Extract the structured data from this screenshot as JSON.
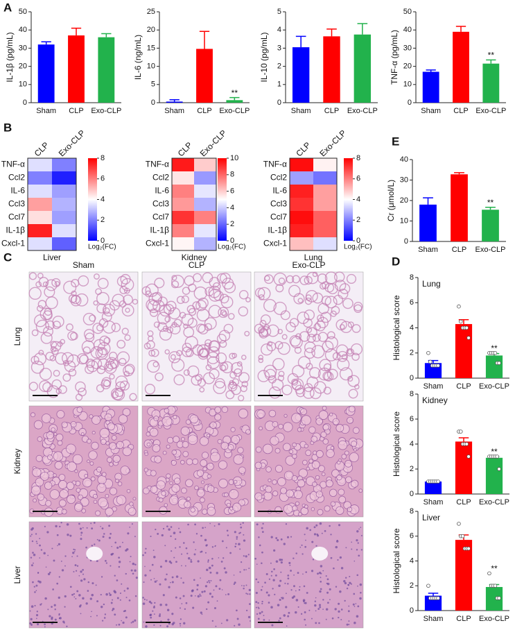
{
  "chart_data": [
    {
      "type": "bar",
      "panel": "A",
      "ylabel": "IL-1β (pg/mL)",
      "categories": [
        "Sham",
        "CLP",
        "Exo-CLP"
      ],
      "values": [
        32,
        37,
        36
      ],
      "errors": [
        1.5,
        4,
        2
      ],
      "colors": [
        "#0000ff",
        "#ff0000",
        "#22b24c"
      ],
      "ylim": [
        0,
        50
      ],
      "yticks": [
        0,
        10,
        20,
        30,
        40,
        50
      ]
    },
    {
      "type": "bar",
      "ylabel": "IL-6 (ng/mL)",
      "categories": [
        "Sham",
        "CLP",
        "Exo-CLP"
      ],
      "values": [
        0.3,
        14.8,
        0.7
      ],
      "errors": [
        0.5,
        4.8,
        0.7
      ],
      "colors": [
        "#0000ff",
        "#ff0000",
        "#22b24c"
      ],
      "ylim": [
        0,
        25
      ],
      "yticks": [
        0,
        5,
        10,
        15,
        20,
        25
      ],
      "annotations": [
        {
          "text": "**",
          "category": "Exo-CLP"
        }
      ]
    },
    {
      "type": "bar",
      "ylabel": "IL-10 (pg/mL)",
      "categories": [
        "Sham",
        "CLP",
        "Exo-CLP"
      ],
      "values": [
        3.05,
        3.65,
        3.75
      ],
      "errors": [
        0.6,
        0.4,
        0.6
      ],
      "colors": [
        "#0000ff",
        "#ff0000",
        "#22b24c"
      ],
      "ylim": [
        0,
        5
      ],
      "yticks": [
        0,
        1,
        2,
        3,
        4,
        5
      ]
    },
    {
      "type": "bar",
      "ylabel": "TNF-α (pg/mL)",
      "categories": [
        "Sham",
        "CLP",
        "Exo-CLP"
      ],
      "values": [
        17,
        39,
        21.5
      ],
      "errors": [
        1,
        3,
        2
      ],
      "colors": [
        "#0000ff",
        "#ff0000",
        "#22b24c"
      ],
      "ylim": [
        0,
        50
      ],
      "yticks": [
        0,
        10,
        20,
        30,
        40,
        50
      ],
      "annotations": [
        {
          "text": "**",
          "category": "Exo-CLP"
        }
      ]
    },
    {
      "type": "heatmap",
      "panel": "B",
      "title": "Liver",
      "columns": [
        "CLP",
        "Exo-CLP"
      ],
      "rows": [
        "TNF-α",
        "Ccl2",
        "IL-6",
        "Ccl3",
        "Ccl7",
        "IL-1β",
        "Cxcl-1"
      ],
      "values": [
        [
          3.5,
          2
        ],
        [
          2,
          0.5
        ],
        [
          3.5,
          2.5
        ],
        [
          5.5,
          2.8
        ],
        [
          4.5,
          2.5
        ],
        [
          7.5,
          3.5
        ],
        [
          3.5,
          1.5
        ]
      ],
      "zlim": [
        0,
        8
      ],
      "zticks": [
        0,
        2,
        4,
        6,
        8
      ],
      "colorbar_label": "Log₂(FC)",
      "colormap": [
        "#0000ff",
        "#ffffff",
        "#ff0000"
      ]
    },
    {
      "type": "heatmap",
      "title": "Kidney",
      "columns": [
        "CLP",
        "Exo-CLP"
      ],
      "rows": [
        "TNF-α",
        "Ccl2",
        "IL-6",
        "Ccl3",
        "Ccl7",
        "IL-1β",
        "Cxcl-1"
      ],
      "values": [
        [
          9.5,
          6
        ],
        [
          5.5,
          3
        ],
        [
          7.5,
          4.5
        ],
        [
          7,
          3.5
        ],
        [
          9,
          7.5
        ],
        [
          7.5,
          4.5
        ],
        [
          5.2,
          3.5
        ]
      ],
      "zlim": [
        0,
        10
      ],
      "zticks": [
        0,
        2,
        4,
        6,
        8,
        10
      ],
      "colorbar_label": "Log₂(FC)",
      "colormap": [
        "#0000ff",
        "#ffffff",
        "#ff0000"
      ]
    },
    {
      "type": "heatmap",
      "title": "Lung",
      "columns": [
        "CLP",
        "Exo-CLP"
      ],
      "rows": [
        "TNF-α",
        "Ccl2",
        "IL-6",
        "Ccl3",
        "Ccl7",
        "IL-1β",
        "Cxcl-1"
      ],
      "values": [
        [
          7.8,
          4.2
        ],
        [
          2.5,
          1.8
        ],
        [
          7.5,
          5.5
        ],
        [
          7.2,
          5.5
        ],
        [
          7.8,
          6.5
        ],
        [
          7.5,
          6.5
        ],
        [
          5,
          3.5
        ]
      ],
      "zlim": [
        0,
        8
      ],
      "zticks": [
        0,
        2,
        4,
        6,
        8
      ],
      "colorbar_label": "Log₂(FC)",
      "colormap": [
        "#0000ff",
        "#ffffff",
        "#ff0000"
      ]
    },
    {
      "type": "bar",
      "panel": "E",
      "ylabel": "Cr (μmol/L)",
      "categories": [
        "Sham",
        "CLP",
        "Exo-CLP"
      ],
      "values": [
        18,
        32.8,
        15.5
      ],
      "errors": [
        3.3,
        0.8,
        1.2
      ],
      "colors": [
        "#0000ff",
        "#ff0000",
        "#22b24c"
      ],
      "ylim": [
        0,
        40
      ],
      "yticks": [
        0,
        10,
        20,
        30,
        40
      ],
      "annotations": [
        {
          "text": "**",
          "category": "Exo-CLP"
        }
      ]
    },
    {
      "type": "bar",
      "panel": "D",
      "title": "Lung",
      "ylabel": "Histological score",
      "categories": [
        "Sham",
        "CLP",
        "Exo-CLP"
      ],
      "values": [
        1.2,
        4.3,
        1.8
      ],
      "errors": [
        0.2,
        0.35,
        0.15
      ],
      "points": [
        [
          2,
          1.3,
          1,
          1,
          1,
          1
        ],
        [
          5.7,
          4.5,
          4,
          4,
          4,
          3.2
        ],
        [
          2,
          2,
          2,
          2,
          1.2,
          1.2
        ]
      ],
      "colors": [
        "#0000ff",
        "#ff0000",
        "#22b24c"
      ],
      "ylim": [
        0,
        8
      ],
      "yticks": [
        0,
        2,
        4,
        6,
        8
      ],
      "annotations": [
        {
          "text": "**",
          "category": "Exo-CLP"
        }
      ]
    },
    {
      "type": "bar",
      "title": "Kidney",
      "ylabel": "Histological score",
      "categories": [
        "Sham",
        "CLP",
        "Exo-CLP"
      ],
      "values": [
        1,
        4.2,
        2.9
      ],
      "errors": [
        0.05,
        0.3,
        0.1
      ],
      "points": [
        [
          1,
          1,
          1,
          1,
          1,
          1
        ],
        [
          5,
          5,
          4,
          4,
          4,
          3
        ],
        [
          3,
          3,
          3,
          3,
          3,
          2
        ]
      ],
      "colors": [
        "#0000ff",
        "#ff0000",
        "#22b24c"
      ],
      "ylim": [
        0,
        8
      ],
      "yticks": [
        0,
        2,
        4,
        6,
        8
      ],
      "annotations": [
        {
          "text": "**",
          "category": "Exo-CLP"
        }
      ]
    },
    {
      "type": "bar",
      "title": "Liver",
      "ylabel": "Histological score",
      "categories": [
        "Sham",
        "CLP",
        "Exo-CLP"
      ],
      "values": [
        1.2,
        5.7,
        1.9
      ],
      "errors": [
        0.2,
        0.4,
        0.2
      ],
      "points": [
        [
          2,
          1,
          1,
          1,
          1,
          1
        ],
        [
          7,
          6,
          6,
          5,
          5,
          5
        ],
        [
          3,
          2,
          2,
          2,
          1,
          1
        ]
      ],
      "colors": [
        "#0000ff",
        "#ff0000",
        "#22b24c"
      ],
      "ylim": [
        0,
        8
      ],
      "yticks": [
        0,
        2,
        4,
        6,
        8
      ],
      "annotations": [
        {
          "text": "**",
          "category": "Exo-CLP"
        }
      ]
    }
  ],
  "histology": {
    "panel": "C",
    "columns": [
      "Sham",
      "CLP",
      "Exo-CLP"
    ],
    "rows": [
      "Lung",
      "Kidney",
      "Liver"
    ]
  }
}
